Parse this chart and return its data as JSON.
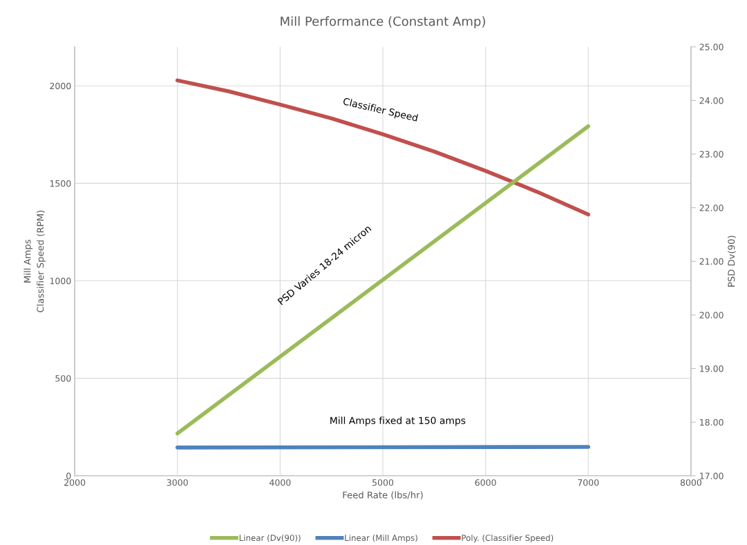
{
  "chart_data": {
    "type": "line",
    "title": "Mill Performance (Constant Amp)",
    "xlabel": "Feed Rate (lbs/hr)",
    "ylabel": "Mill Amps\nClassifier Speed (RPM)",
    "y2label": "PSD Dv(90)",
    "xlim": [
      2000,
      8000
    ],
    "xticks": [
      2000,
      3000,
      4000,
      5000,
      6000,
      7000,
      8000
    ],
    "ylim": [
      0,
      2200
    ],
    "yticks": [
      0,
      500,
      1000,
      1500,
      2000
    ],
    "y2lim": [
      17,
      25
    ],
    "y2ticks": [
      {
        "value": 17,
        "label": "17.00"
      },
      {
        "value": 18,
        "label": "18.00"
      },
      {
        "value": 19,
        "label": "19.00"
      },
      {
        "value": 20,
        "label": "20.00"
      },
      {
        "value": 21,
        "label": "21.00"
      },
      {
        "value": 22,
        "label": "22.00"
      },
      {
        "value": 23,
        "label": "23.00"
      },
      {
        "value": 24,
        "label": "24.00"
      },
      {
        "value": 25,
        "label": "25.00"
      }
    ],
    "grid": true,
    "legend": "bottom",
    "marker": "none",
    "line_style": "solid",
    "series": [
      {
        "name": "Linear (Dv(90))",
        "color": "#9bbb59",
        "axis": "y2",
        "x": [
          3000,
          7000
        ],
        "values": [
          17.79,
          23.52
        ]
      },
      {
        "name": "Linear (Mill Amps)",
        "color": "#4f81bd",
        "x": [
          3000,
          7000
        ],
        "values": [
          145,
          148
        ]
      },
      {
        "name": "Poly. (Classifier Speed)",
        "color": "#c0504d",
        "x": [
          3000,
          3500,
          4000,
          4500,
          5000,
          5500,
          6000,
          6500,
          7000
        ],
        "values": [
          2028,
          1972,
          1904,
          1833,
          1752,
          1663,
          1564,
          1457,
          1340
        ]
      }
    ],
    "annotations": [
      "Classifier Speed",
      "PSD Varies 18-24 micron",
      "Mill Amps fixed at 150 amps"
    ]
  }
}
